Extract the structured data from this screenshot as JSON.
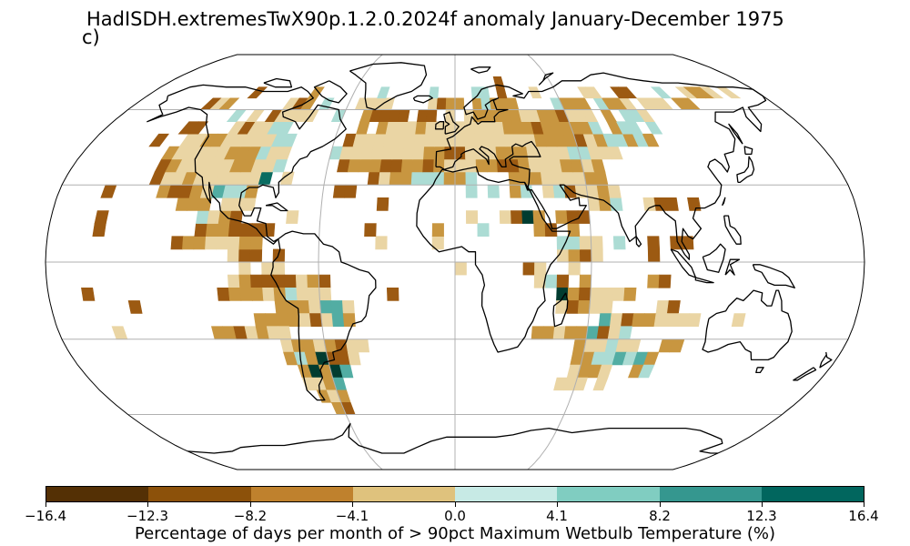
{
  "title": "HadISDH.extremesTwX90p.1.2.0.2024f anomaly January-December 1975",
  "panel_label": "c)",
  "colorbar": {
    "label": "Percentage of days per month of > 90pct Maximum Wetbulb Temperature (%)",
    "ticks": [
      "−16.4",
      "−12.3",
      "−8.2",
      "−4.1",
      "0.0",
      "4.1",
      "8.2",
      "12.3",
      "16.4"
    ],
    "colors": [
      "#543005",
      "#8c510a",
      "#bf812d",
      "#dfc27d",
      "#c7eae5",
      "#80cdc1",
      "#35978f",
      "#01665e",
      "#003c30"
    ]
  },
  "map": {
    "projection": "Robinson",
    "gridlines": true,
    "cell_colors": {
      "d": "#9c5a12",
      "m": "#c89640",
      "l": "#ead5a4",
      "t": "#acdcd4",
      "g": "#52ada3",
      "e": "#0a6c61",
      "k": "#013c30",
      "b": "#5a3307"
    }
  }
}
